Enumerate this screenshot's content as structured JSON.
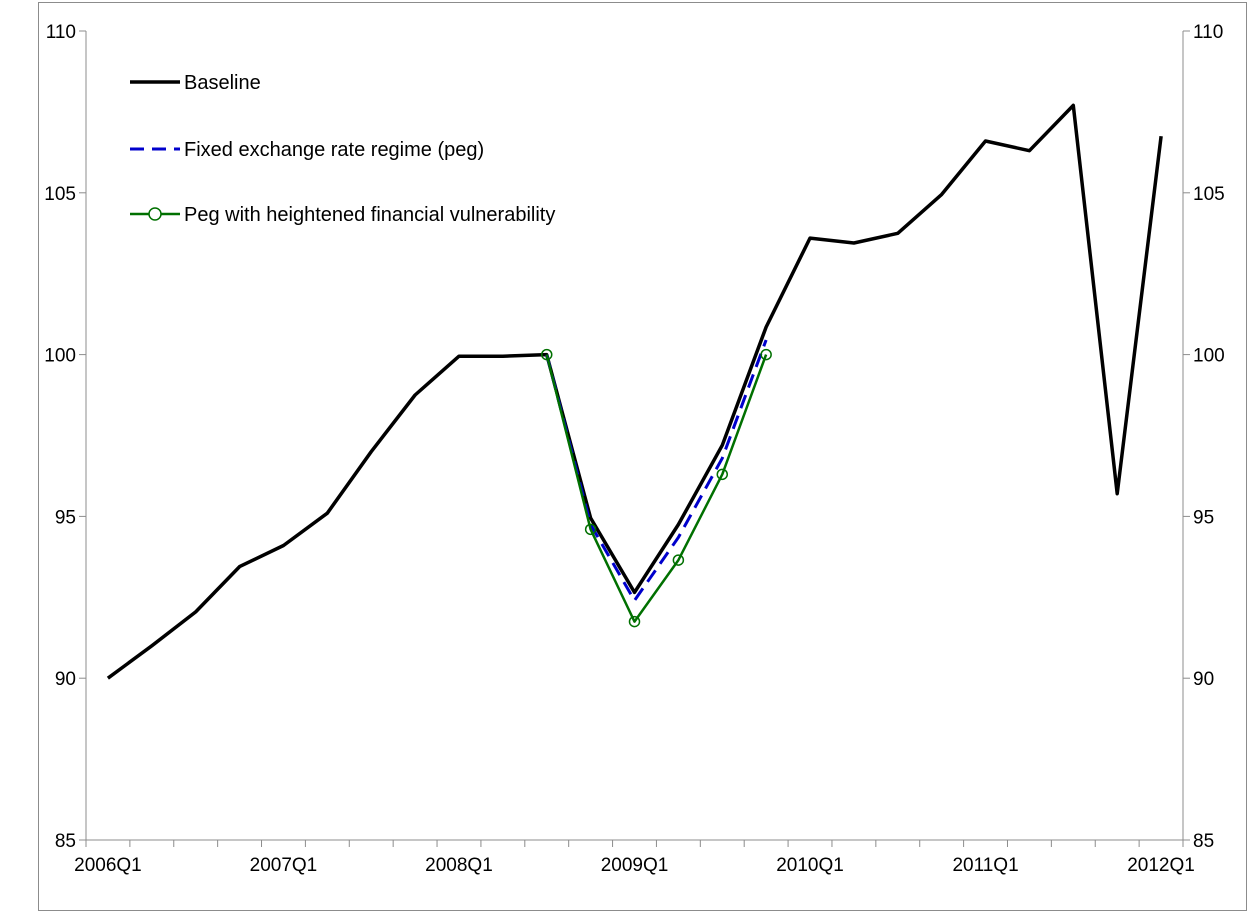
{
  "chart_data": {
    "type": "line",
    "title": "",
    "xlabel": "",
    "ylabel": "",
    "x": [
      "2006Q1",
      "2006Q2",
      "2006Q3",
      "2006Q4",
      "2007Q1",
      "2007Q2",
      "2007Q3",
      "2007Q4",
      "2008Q1",
      "2008Q2",
      "2008Q3",
      "2008Q4",
      "2009Q1",
      "2009Q2",
      "2009Q3",
      "2009Q4",
      "2010Q1",
      "2010Q2",
      "2010Q3",
      "2010Q4",
      "2011Q1",
      "2011Q2",
      "2011Q3",
      "2011Q4",
      "2012Q1"
    ],
    "x_tick_labels": [
      "2006Q1",
      "2007Q1",
      "2008Q1",
      "2009Q1",
      "2010Q1",
      "2011Q1",
      "2012Q1"
    ],
    "ylim": [
      85,
      110
    ],
    "y_ticks": [
      85,
      90,
      95,
      100,
      105,
      110
    ],
    "y_tick_labels_left": [
      "85",
      "90",
      "95",
      "100",
      "105",
      "110"
    ],
    "y_tick_labels_right": [
      "85",
      "90",
      "95",
      "100",
      "105",
      "110"
    ],
    "grid": false,
    "legend_position": "top-left",
    "series": [
      {
        "name": "Baseline",
        "color": "#000000",
        "style": "solid",
        "marker": "none",
        "values": [
          90.0,
          91.0,
          92.05,
          93.45,
          94.1,
          95.1,
          97.0,
          98.75,
          99.95,
          99.95,
          100.0,
          94.95,
          92.65,
          94.75,
          97.2,
          100.85,
          103.6,
          103.45,
          103.75,
          104.95,
          106.6,
          106.3,
          107.7,
          95.7,
          106.75
        ]
      },
      {
        "name": "Fixed exchange rate regime (peg)",
        "color": "#0000cc",
        "style": "dashed",
        "marker": "none",
        "values": [
          null,
          null,
          null,
          null,
          null,
          null,
          null,
          null,
          null,
          null,
          100.0,
          94.75,
          92.4,
          94.35,
          96.8,
          100.45,
          null,
          null,
          null,
          null,
          null,
          null,
          null,
          null,
          null
        ]
      },
      {
        "name": "Peg with heightened financial vulnerability",
        "color": "#007000",
        "style": "solid",
        "marker": "circle",
        "values": [
          null,
          null,
          null,
          null,
          null,
          null,
          null,
          null,
          null,
          null,
          100.0,
          94.6,
          91.75,
          93.65,
          96.3,
          100.0,
          null,
          null,
          null,
          null,
          null,
          null,
          null,
          null,
          null
        ]
      }
    ]
  }
}
